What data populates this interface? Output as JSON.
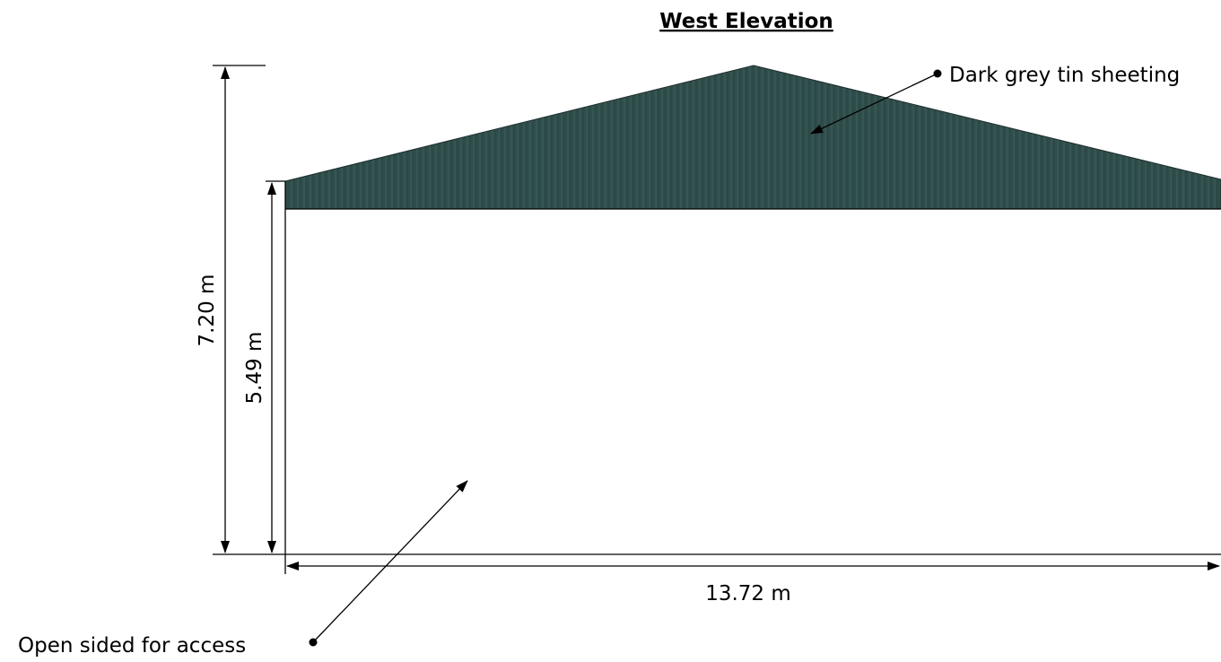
{
  "drawing": {
    "title": "West Elevation ",
    "annotations": {
      "roof_note": "Dark grey tin sheeting",
      "access_note": "Open sided for access"
    },
    "dimensions": {
      "overall_height": "7.20 m",
      "eave_height": "5.49 m",
      "width": "13.72 m"
    },
    "colors": {
      "roof_sheeting": "#2f4d4b",
      "roof_rib": "#3d5f5c",
      "line": "#000000",
      "background": "#ffffff"
    }
  }
}
